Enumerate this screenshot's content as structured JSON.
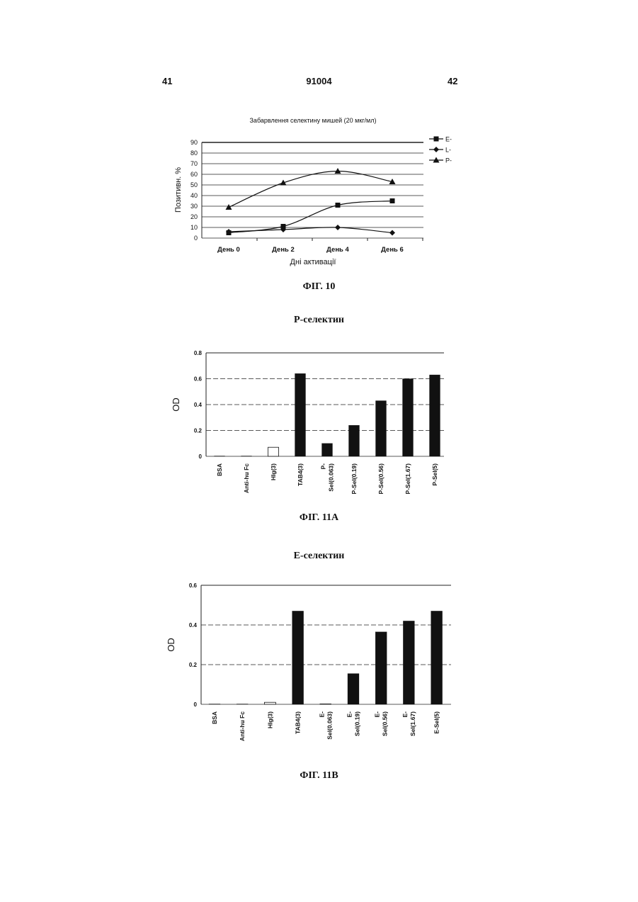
{
  "header": {
    "left_page": "41",
    "patent_number": "91004",
    "right_page": "42"
  },
  "figures": {
    "fig10": {
      "caption": "ФІГ. 10"
    },
    "fig11a": {
      "heading": "Р-селектин",
      "caption": "ФІГ. 11А"
    },
    "fig11b": {
      "heading": "Е-селектин",
      "caption": "ФІГ. 11В"
    }
  },
  "chart_data": [
    {
      "type": "line",
      "title": "Забарвлення селектину мишей (20 мкг/мл)",
      "xlabel": "Дні активації",
      "ylabel": "Позитивн. %",
      "categories": [
        "День 0",
        "День 2",
        "День 4",
        "День 6"
      ],
      "ylim": [
        0,
        90
      ],
      "yticks": [
        0,
        10,
        20,
        30,
        40,
        50,
        60,
        70,
        80,
        90
      ],
      "grid": true,
      "legend": "top-right",
      "series": [
        {
          "name": "E-",
          "marker": "square",
          "values": [
            5,
            11,
            31,
            35
          ]
        },
        {
          "name": "L-",
          "marker": "diamond",
          "values": [
            6,
            8,
            10,
            5
          ]
        },
        {
          "name": "P-",
          "marker": "triangle",
          "values": [
            29,
            52,
            63,
            53
          ]
        }
      ]
    },
    {
      "type": "bar",
      "title": "",
      "xlabel": "",
      "ylabel": "OD",
      "ylim": [
        0,
        0.8
      ],
      "yticks": [
        "0",
        "0.2",
        "0.4",
        "0.6",
        "0.8"
      ],
      "grid": true,
      "categories": [
        [
          "BSA"
        ],
        [
          "Anti-hu Fc"
        ],
        [
          "HIg(3)"
        ],
        [
          "TAB4(3)"
        ],
        [
          "P-",
          "Sel(0.063)"
        ],
        [
          "P-Sel(0.19)"
        ],
        [
          "P-Sel(0.56)"
        ],
        [
          "P-Sel(1.67)"
        ],
        [
          "P-Sel(5)"
        ]
      ],
      "values": [
        0,
        0,
        0.07,
        0.64,
        0.1,
        0.24,
        0.43,
        0.6,
        0.63
      ],
      "fills": [
        "#111111",
        "#111111",
        "#ffffff",
        "#111111",
        "#111111",
        "#111111",
        "#111111",
        "#111111",
        "#111111"
      ]
    },
    {
      "type": "bar",
      "title": "",
      "xlabel": "",
      "ylabel": "OD",
      "ylim": [
        0,
        0.6
      ],
      "yticks": [
        "0",
        "0.2",
        "0.4",
        "0.6"
      ],
      "grid": true,
      "categories": [
        [
          "BSA"
        ],
        [
          "Anti-hu Fc"
        ],
        [
          "HIg(3)"
        ],
        [
          "TAB4(3)"
        ],
        [
          "E-",
          "Sel(0.063)"
        ],
        [
          "E-",
          "Sel(0.19)"
        ],
        [
          "E-",
          "Sel(0.56)"
        ],
        [
          "E-",
          "Sel(1.67)"
        ],
        [
          "E-Sel(5)"
        ]
      ],
      "values": [
        0,
        0,
        0.01,
        0.47,
        0.003,
        0.155,
        0.365,
        0.42,
        0.47
      ],
      "fills": [
        "#111111",
        "#111111",
        "#ffffff",
        "#111111",
        "#111111",
        "#111111",
        "#111111",
        "#111111",
        "#111111"
      ]
    }
  ]
}
